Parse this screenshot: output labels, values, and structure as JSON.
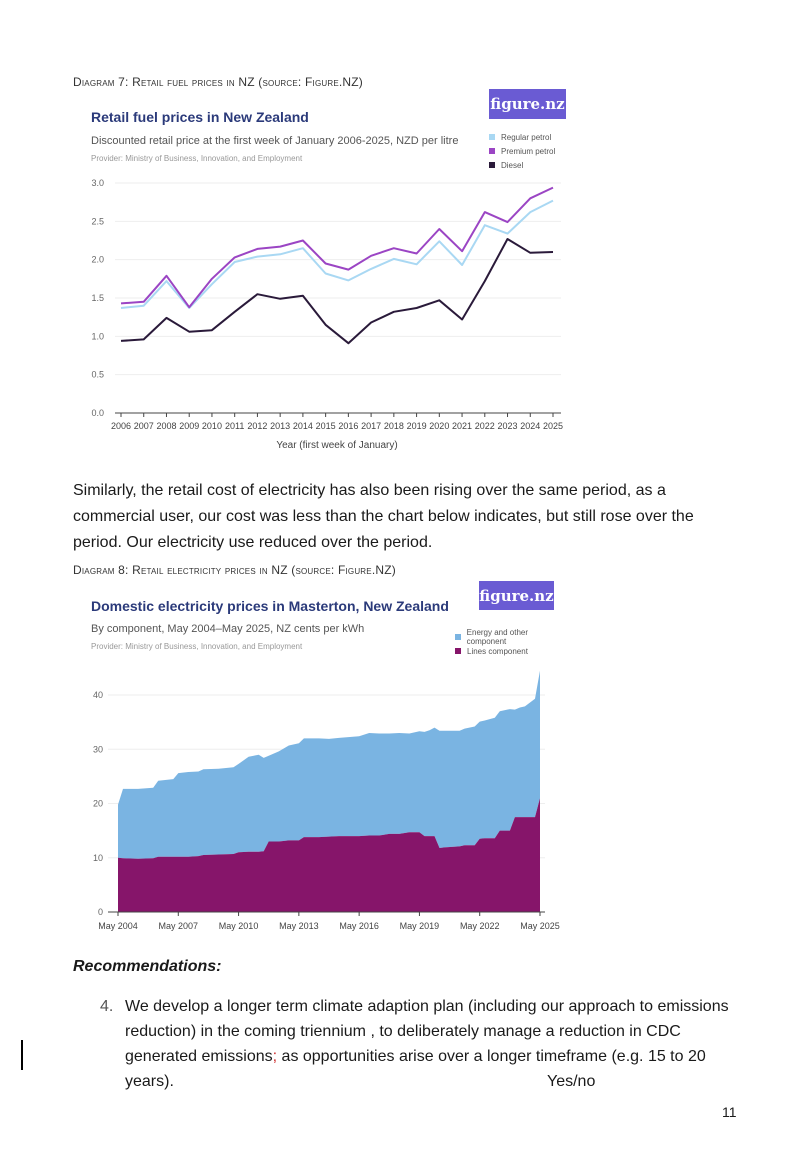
{
  "diagram7": {
    "caption": "Diagram 7: Retail fuel prices in NZ (source: Figure.NZ)",
    "logo": "figure.nz"
  },
  "diagram8": {
    "caption": "Diagram 8: Retail electricity prices in NZ (source: Figure.NZ)",
    "logo": "figure.nz"
  },
  "paragraph": "Similarly, the retail cost of electricity has also been rising over the same period, as a commercial user, our cost was less than the chart below indicates, but still rose over the period.  Our electricity use reduced over the period.",
  "recommendations": {
    "heading": "Recommendations:",
    "item_number": "4.",
    "item_text_a": "We develop a longer term climate adaption plan (including our approach to emissions reduction) in the coming triennium , to deliberately manage a reduction in CDC generated emissions",
    "item_semicolon": ";",
    "item_text_b": " as opportunities arise over a longer timeframe (e.g. 15 to 20 years).",
    "item_answer": "Yes/no"
  },
  "page_number": "11",
  "colors": {
    "regular": "#a9d8f3",
    "premium": "#9b45c4",
    "diesel": "#2a1a3a",
    "energy": "#7ab4e2",
    "lines": "#86156a",
    "logo_bg": "#6a5bd3"
  },
  "chart_data": [
    {
      "type": "line",
      "title": "Retail fuel prices in New Zealand",
      "subtitle": "Discounted retail price at the first week of January 2006-2025, NZD per litre",
      "provider": "Provider: Ministry of Business, Innovation, and Employment",
      "xlabel": "Year (first week of January)",
      "ylabel": "",
      "ylim": [
        0,
        3.0
      ],
      "yticks": [
        "0.0",
        "0.5",
        "1.0",
        "1.5",
        "2.0",
        "2.5",
        "3.0"
      ],
      "x": [
        "2006",
        "2007",
        "2008",
        "2009",
        "2010",
        "2011",
        "2012",
        "2013",
        "2014",
        "2015",
        "2016",
        "2017",
        "2018",
        "2019",
        "2020",
        "2021",
        "2022",
        "2023",
        "2024",
        "2025"
      ],
      "legend_position": "top-right",
      "series": [
        {
          "name": "Regular petrol",
          "values": [
            1.37,
            1.4,
            1.72,
            1.37,
            1.68,
            1.97,
            2.04,
            2.07,
            2.15,
            1.82,
            1.73,
            1.88,
            2.01,
            1.94,
            2.24,
            1.93,
            2.45,
            2.34,
            2.62,
            2.77
          ]
        },
        {
          "name": "Premium petrol",
          "values": [
            1.43,
            1.45,
            1.79,
            1.38,
            1.75,
            2.03,
            2.14,
            2.17,
            2.25,
            1.95,
            1.87,
            2.05,
            2.15,
            2.08,
            2.4,
            2.11,
            2.62,
            2.49,
            2.8,
            2.94
          ]
        },
        {
          "name": "Diesel",
          "values": [
            0.94,
            0.96,
            1.24,
            1.06,
            1.08,
            1.32,
            1.55,
            1.49,
            1.53,
            1.15,
            0.91,
            1.18,
            1.32,
            1.37,
            1.47,
            1.22,
            1.72,
            2.27,
            2.09,
            2.1
          ]
        }
      ]
    },
    {
      "type": "area",
      "stacked": true,
      "title": "Domestic electricity prices in Masterton, New Zealand",
      "subtitle": "By component, May 2004–May 2025, NZ cents per kWh",
      "provider": "Provider: Ministry of Business, Innovation, and Employment",
      "xlabel": "",
      "ylabel": "",
      "ylim": [
        0,
        45
      ],
      "yticks": [
        "0",
        "10",
        "20",
        "30",
        "40"
      ],
      "xticks": [
        "May 2004",
        "May 2007",
        "May 2010",
        "May 2013",
        "May 2016",
        "May 2019",
        "May 2022",
        "May 2025"
      ],
      "x": [
        2004.0,
        2004.25,
        2005,
        2005.75,
        2006,
        2006.75,
        2007,
        2007.5,
        2008,
        2008.25,
        2009,
        2009.75,
        2010,
        2010.5,
        2011,
        2011.25,
        2011.5,
        2012,
        2012.5,
        2013,
        2013.25,
        2014,
        2014.5,
        2015,
        2016,
        2016.5,
        2017,
        2017.5,
        2018,
        2018.5,
        2019,
        2019.25,
        2019.5,
        2019.75,
        2020,
        2020.25,
        2021,
        2021.25,
        2021.75,
        2022,
        2022.25,
        2022.75,
        2023,
        2023.5,
        2023.75,
        2024,
        2024.25,
        2024.75,
        2025.0
      ],
      "legend_position": "top-right",
      "series": [
        {
          "name": "Lines component",
          "values": [
            10.0,
            9.9,
            9.8,
            9.9,
            10.2,
            10.2,
            10.2,
            10.2,
            10.3,
            10.5,
            10.6,
            10.7,
            11.0,
            11.1,
            11.1,
            11.2,
            13.0,
            13.0,
            13.2,
            13.2,
            13.8,
            13.8,
            13.9,
            14.0,
            14.0,
            14.1,
            14.1,
            14.4,
            14.4,
            14.7,
            14.7,
            14.0,
            14.0,
            14.0,
            11.8,
            11.9,
            12.1,
            12.3,
            12.3,
            13.5,
            13.6,
            13.6,
            15.0,
            15.0,
            17.5,
            17.5,
            17.5,
            17.5,
            21.0
          ]
        },
        {
          "name": "Energy and other component",
          "values": [
            9.8,
            12.8,
            12.9,
            13.0,
            14.0,
            14.3,
            15.4,
            15.6,
            15.6,
            15.8,
            15.8,
            16.0,
            16.3,
            17.5,
            17.9,
            17.2,
            15.8,
            16.6,
            17.5,
            17.9,
            18.2,
            18.2,
            18.0,
            18.1,
            18.4,
            18.9,
            18.8,
            18.5,
            18.6,
            18.2,
            18.6,
            19.2,
            19.5,
            20.0,
            21.6,
            21.5,
            21.3,
            21.5,
            21.9,
            21.6,
            21.7,
            22.2,
            22.0,
            22.4,
            19.8,
            20.2,
            20.4,
            21.8,
            23.5
          ]
        }
      ]
    }
  ]
}
